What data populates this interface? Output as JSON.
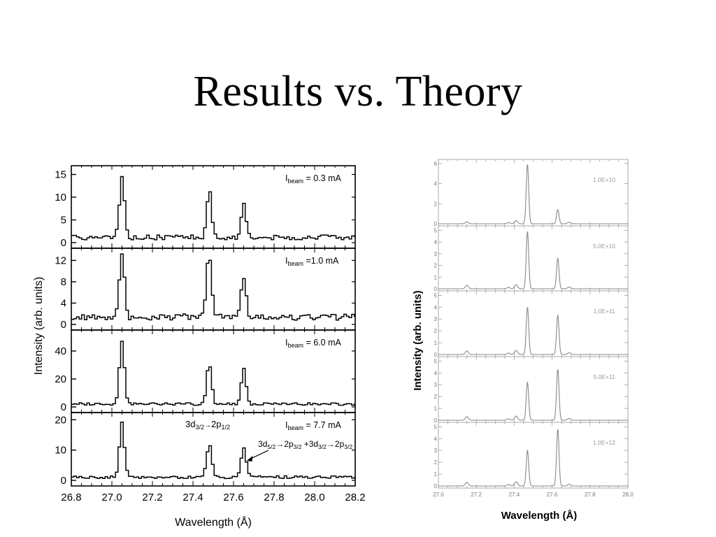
{
  "slide": {
    "title": "Results vs. Theory"
  },
  "chart_data": [
    {
      "type": "line",
      "xlabel": "Wavelength (Å)",
      "ylabel": "Intensity (arb. units)",
      "xlim": [
        26.8,
        28.2
      ],
      "xticks": [
        "26.8",
        "27.0",
        "27.2",
        "27.4",
        "27.6",
        "27.8",
        "28.0",
        "28.2"
      ],
      "line_shape": "step",
      "panels": [
        {
          "label_base": "I",
          "label_sub": "beam",
          "label_rest": " = 0.3 mA",
          "ylim": [
            0,
            16
          ],
          "yticks": [
            "0",
            "5",
            "10",
            "15"
          ],
          "noise": 1.1,
          "baseline": 0.6,
          "peaks": [
            {
              "x": 27.05,
              "y": 14
            },
            {
              "x": 27.48,
              "y": 11
            },
            {
              "x": 27.65,
              "y": 8
            }
          ]
        },
        {
          "label_base": "I",
          "label_sub": "beam",
          "label_rest": " =1.0 mA",
          "ylim": [
            0,
            13.5
          ],
          "yticks": [
            "0",
            "4",
            "8",
            "12"
          ],
          "noise": 1.2,
          "baseline": 0.8,
          "peaks": [
            {
              "x": 27.05,
              "y": 12.5
            },
            {
              "x": 27.48,
              "y": 12.5
            },
            {
              "x": 27.65,
              "y": 8
            }
          ]
        },
        {
          "label_base": "I",
          "label_sub": "beam",
          "label_rest": " = 6.0 mA",
          "ylim": [
            0,
            52
          ],
          "yticks": [
            "0",
            "20",
            "40"
          ],
          "noise": 1.8,
          "baseline": 1.2,
          "peaks": [
            {
              "x": 27.05,
              "y": 48
            },
            {
              "x": 27.48,
              "y": 30
            },
            {
              "x": 27.65,
              "y": 26
            }
          ]
        },
        {
          "label_base": "I",
          "label_sub": "beam",
          "label_rest": " = 7.7 mA",
          "ylim": [
            0,
            21
          ],
          "yticks": [
            "0",
            "10",
            "20"
          ],
          "noise": 0.9,
          "baseline": 0.6,
          "peaks": [
            {
              "x": 27.05,
              "y": 18
            },
            {
              "x": 27.48,
              "y": 11.5
            },
            {
              "x": 27.65,
              "y": 10
            }
          ]
        }
      ],
      "annotations": [
        {
          "text_base1": "3d",
          "sub1": "3/2",
          "arrow": "→",
          "text_base2": "2p",
          "sub2": "1/2"
        },
        {
          "text": "3d",
          "sub_a": "5/2",
          "mid_a": "→2p",
          "sub_b": "3/2",
          "plus": " +3d",
          "sub_c": "3/2",
          "mid_b": "→2p",
          "sub_d": "3/2",
          "target_x": 27.65
        }
      ]
    },
    {
      "type": "line",
      "xlabel": "Wavelength (Å)",
      "ylabel": "Intensity (arb. units)",
      "xlim": [
        27.0,
        28.0
      ],
      "xticks": [
        "27.0",
        "27.2",
        "27.4",
        "27.6",
        "27.8",
        "28.0"
      ],
      "line_shape": "smooth",
      "line_color": "#888888",
      "panels": [
        {
          "label": "1.0E+10",
          "ylim": [
            0,
            6.2
          ],
          "yticks": [
            "0",
            "2",
            "4",
            "6"
          ],
          "peaks": [
            {
              "x": 27.15,
              "y": 0.2
            },
            {
              "x": 27.37,
              "y": 0.12
            },
            {
              "x": 27.41,
              "y": 0.3
            },
            {
              "x": 27.47,
              "y": 5.9
            },
            {
              "x": 27.63,
              "y": 1.4
            },
            {
              "x": 27.69,
              "y": 0.15
            }
          ]
        },
        {
          "label": "5.0E+10",
          "ylim": [
            0,
            5.2
          ],
          "yticks": [
            "0",
            "1",
            "2",
            "3",
            "4",
            "5"
          ],
          "peaks": [
            {
              "x": 27.15,
              "y": 0.3
            },
            {
              "x": 27.37,
              "y": 0.12
            },
            {
              "x": 27.41,
              "y": 0.35
            },
            {
              "x": 27.47,
              "y": 4.9
            },
            {
              "x": 27.63,
              "y": 2.6
            },
            {
              "x": 27.69,
              "y": 0.15
            }
          ]
        },
        {
          "label": "1.0E+11",
          "ylim": [
            0,
            5.2
          ],
          "yticks": [
            "0",
            "1",
            "2",
            "3",
            "4",
            "5"
          ],
          "peaks": [
            {
              "x": 27.15,
              "y": 0.3
            },
            {
              "x": 27.37,
              "y": 0.12
            },
            {
              "x": 27.41,
              "y": 0.35
            },
            {
              "x": 27.47,
              "y": 4.0
            },
            {
              "x": 27.63,
              "y": 3.3
            },
            {
              "x": 27.69,
              "y": 0.15
            }
          ]
        },
        {
          "label": "5.0E+11",
          "ylim": [
            0,
            5.2
          ],
          "yticks": [
            "0",
            "1",
            "2",
            "3",
            "4",
            "5"
          ],
          "peaks": [
            {
              "x": 27.15,
              "y": 0.3
            },
            {
              "x": 27.37,
              "y": 0.12
            },
            {
              "x": 27.41,
              "y": 0.35
            },
            {
              "x": 27.47,
              "y": 3.2
            },
            {
              "x": 27.63,
              "y": 4.3
            },
            {
              "x": 27.69,
              "y": 0.15
            }
          ]
        },
        {
          "label": "1.0E+12",
          "ylim": [
            0,
            5.2
          ],
          "yticks": [
            "0",
            "1",
            "2",
            "3",
            "4",
            "5"
          ],
          "peaks": [
            {
              "x": 27.15,
              "y": 0.3
            },
            {
              "x": 27.37,
              "y": 0.12
            },
            {
              "x": 27.41,
              "y": 0.35
            },
            {
              "x": 27.47,
              "y": 3.0
            },
            {
              "x": 27.63,
              "y": 4.8
            },
            {
              "x": 27.69,
              "y": 0.15
            }
          ]
        }
      ]
    }
  ]
}
